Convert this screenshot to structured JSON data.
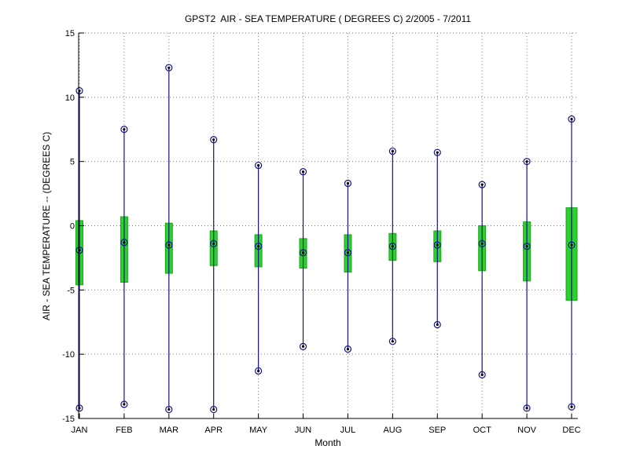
{
  "chart_data": {
    "type": "box-whisker-stem",
    "title": "GPST2  AIR - SEA TEMPERATURE ( DEGREES C) 2/2005 - 7/2011",
    "xlabel": "Month",
    "ylabel": "AIR - SEA TEMPERATURE -- (DEGREES C)",
    "categories": [
      "JAN",
      "FEB",
      "MAR",
      "APR",
      "MAY",
      "JUN",
      "JUL",
      "AUG",
      "SEP",
      "OCT",
      "NOV",
      "DEC"
    ],
    "ylim": [
      -15,
      15
    ],
    "yticks": [
      15,
      10,
      5,
      0,
      -5,
      -10,
      -15
    ],
    "ytick_labels": [
      "15",
      "10",
      "5",
      "0",
      "-5",
      "-10",
      "-15"
    ],
    "grid": "dotted gridlines on both axes",
    "legend": "none",
    "series": [
      {
        "name": "max",
        "marker": "circled-dot",
        "values": [
          10.5,
          7.5,
          12.3,
          6.7,
          4.7,
          4.2,
          3.3,
          5.8,
          5.7,
          3.2,
          5.0,
          8.3
        ]
      },
      {
        "name": "box_top",
        "marker": "none",
        "values": [
          0.4,
          0.7,
          0.2,
          -0.4,
          -0.7,
          -1.0,
          -0.7,
          -0.6,
          -0.4,
          0.0,
          0.3,
          1.4
        ]
      },
      {
        "name": "mean",
        "marker": "circled-dot",
        "values": [
          -1.9,
          -1.3,
          -1.5,
          -1.4,
          -1.6,
          -2.1,
          -2.1,
          -1.6,
          -1.5,
          -1.4,
          -1.6,
          -1.5
        ]
      },
      {
        "name": "box_bottom",
        "marker": "none",
        "values": [
          -4.6,
          -4.4,
          -3.7,
          -3.1,
          -3.2,
          -3.3,
          -3.6,
          -2.7,
          -2.8,
          -3.5,
          -4.3,
          -5.8
        ]
      },
      {
        "name": "min",
        "marker": "circled-dot",
        "values": [
          -14.2,
          -13.9,
          -14.3,
          -14.3,
          -11.3,
          -9.4,
          -9.6,
          -9.0,
          -7.7,
          -11.6,
          -14.2,
          -14.1
        ]
      }
    ],
    "colors": {
      "stem": "#14148c",
      "marker_ring": "#14148c",
      "marker_dot": "#000000",
      "box_fill": "#2dd02d",
      "box_edge": "#18a818",
      "axis": "#000000",
      "grid": "#7a7a7a",
      "background": "#ffffff"
    }
  }
}
